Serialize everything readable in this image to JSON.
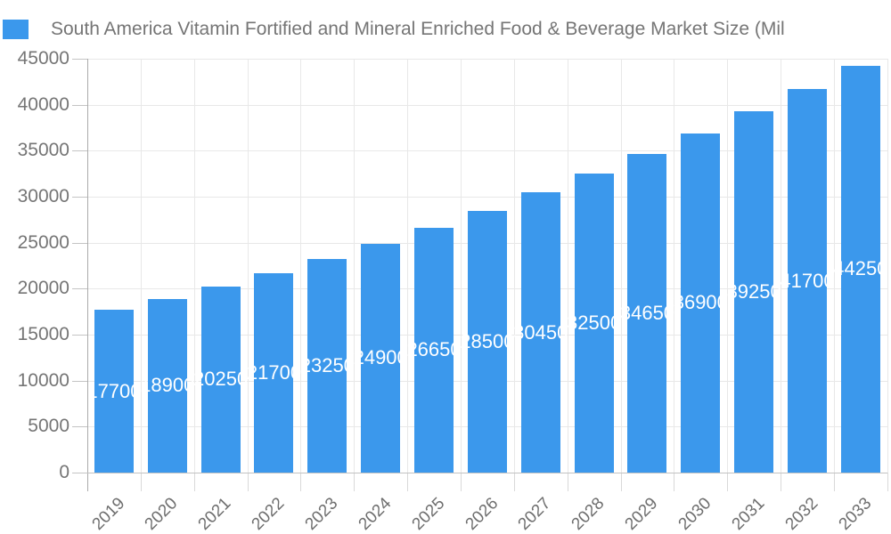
{
  "header": {
    "legend_label": "South America Vitamin Fortified and Mineral Enriched Food & Beverage Market Size (Mil"
  },
  "chart_data": {
    "type": "bar",
    "title": "South America Vitamin Fortified and Mineral Enriched Food & Beverage Market Size (Mil",
    "categories": [
      "2019",
      "2020",
      "2021",
      "2022",
      "2023",
      "2024",
      "2025",
      "2026",
      "2027",
      "2028",
      "2029",
      "2030",
      "2031",
      "2032",
      "2033"
    ],
    "values": [
      17700,
      18900,
      20250,
      21700,
      23250,
      24900,
      26650,
      28500,
      30450,
      32500,
      34650,
      36900,
      39250,
      41700,
      44250
    ],
    "bar_labels": [
      "17700",
      "18900",
      "20250",
      "21700",
      "23250",
      "24900",
      "26650",
      "28500",
      "30450",
      "32500",
      "34650",
      "36900",
      "39250",
      "41700",
      "44250"
    ],
    "xlabel": "",
    "ylabel": "",
    "ylim": [
      0,
      45000
    ],
    "ytick_step": 5000,
    "ytick_labels": [
      "0",
      "5000",
      "10000",
      "15000",
      "20000",
      "25000",
      "30000",
      "35000",
      "40000",
      "45000"
    ],
    "grid": true,
    "legend_position": "top-left",
    "colors": {
      "bar": "#3B98EC",
      "bar_label_text": "#ffffff",
      "axis_text": "#757575",
      "xlabel_text": "#6e6e6e",
      "grid_line": "#e8e8e8",
      "axis_line": "#ababab",
      "baseline": "#c2c2c2",
      "tick_stub": "#d9d9d9",
      "background": "#ffffff"
    }
  }
}
